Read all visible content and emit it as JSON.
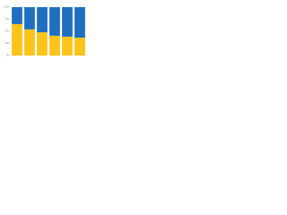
{
  "chart_data": {
    "type": "stacked_bar",
    "categories": [
      null,
      null,
      null,
      null,
      null,
      null
    ],
    "series": [
      {
        "color": "#fcc419",
        "values": [
          65,
          54,
          48,
          41,
          39,
          37
        ]
      },
      {
        "color": "#1f6fc0",
        "values": [
          35,
          46,
          52,
          59,
          61,
          63
        ]
      }
    ],
    "ylim": [
      0,
      100
    ],
    "yticks": [
      {
        "value": 0,
        "label": "0%"
      },
      {
        "value": 25,
        "label": "25%"
      },
      {
        "value": 50,
        "label": "50%"
      },
      {
        "value": 75,
        "label": "75%"
      },
      {
        "value": 100,
        "label": "100%"
      }
    ],
    "grid": true
  }
}
